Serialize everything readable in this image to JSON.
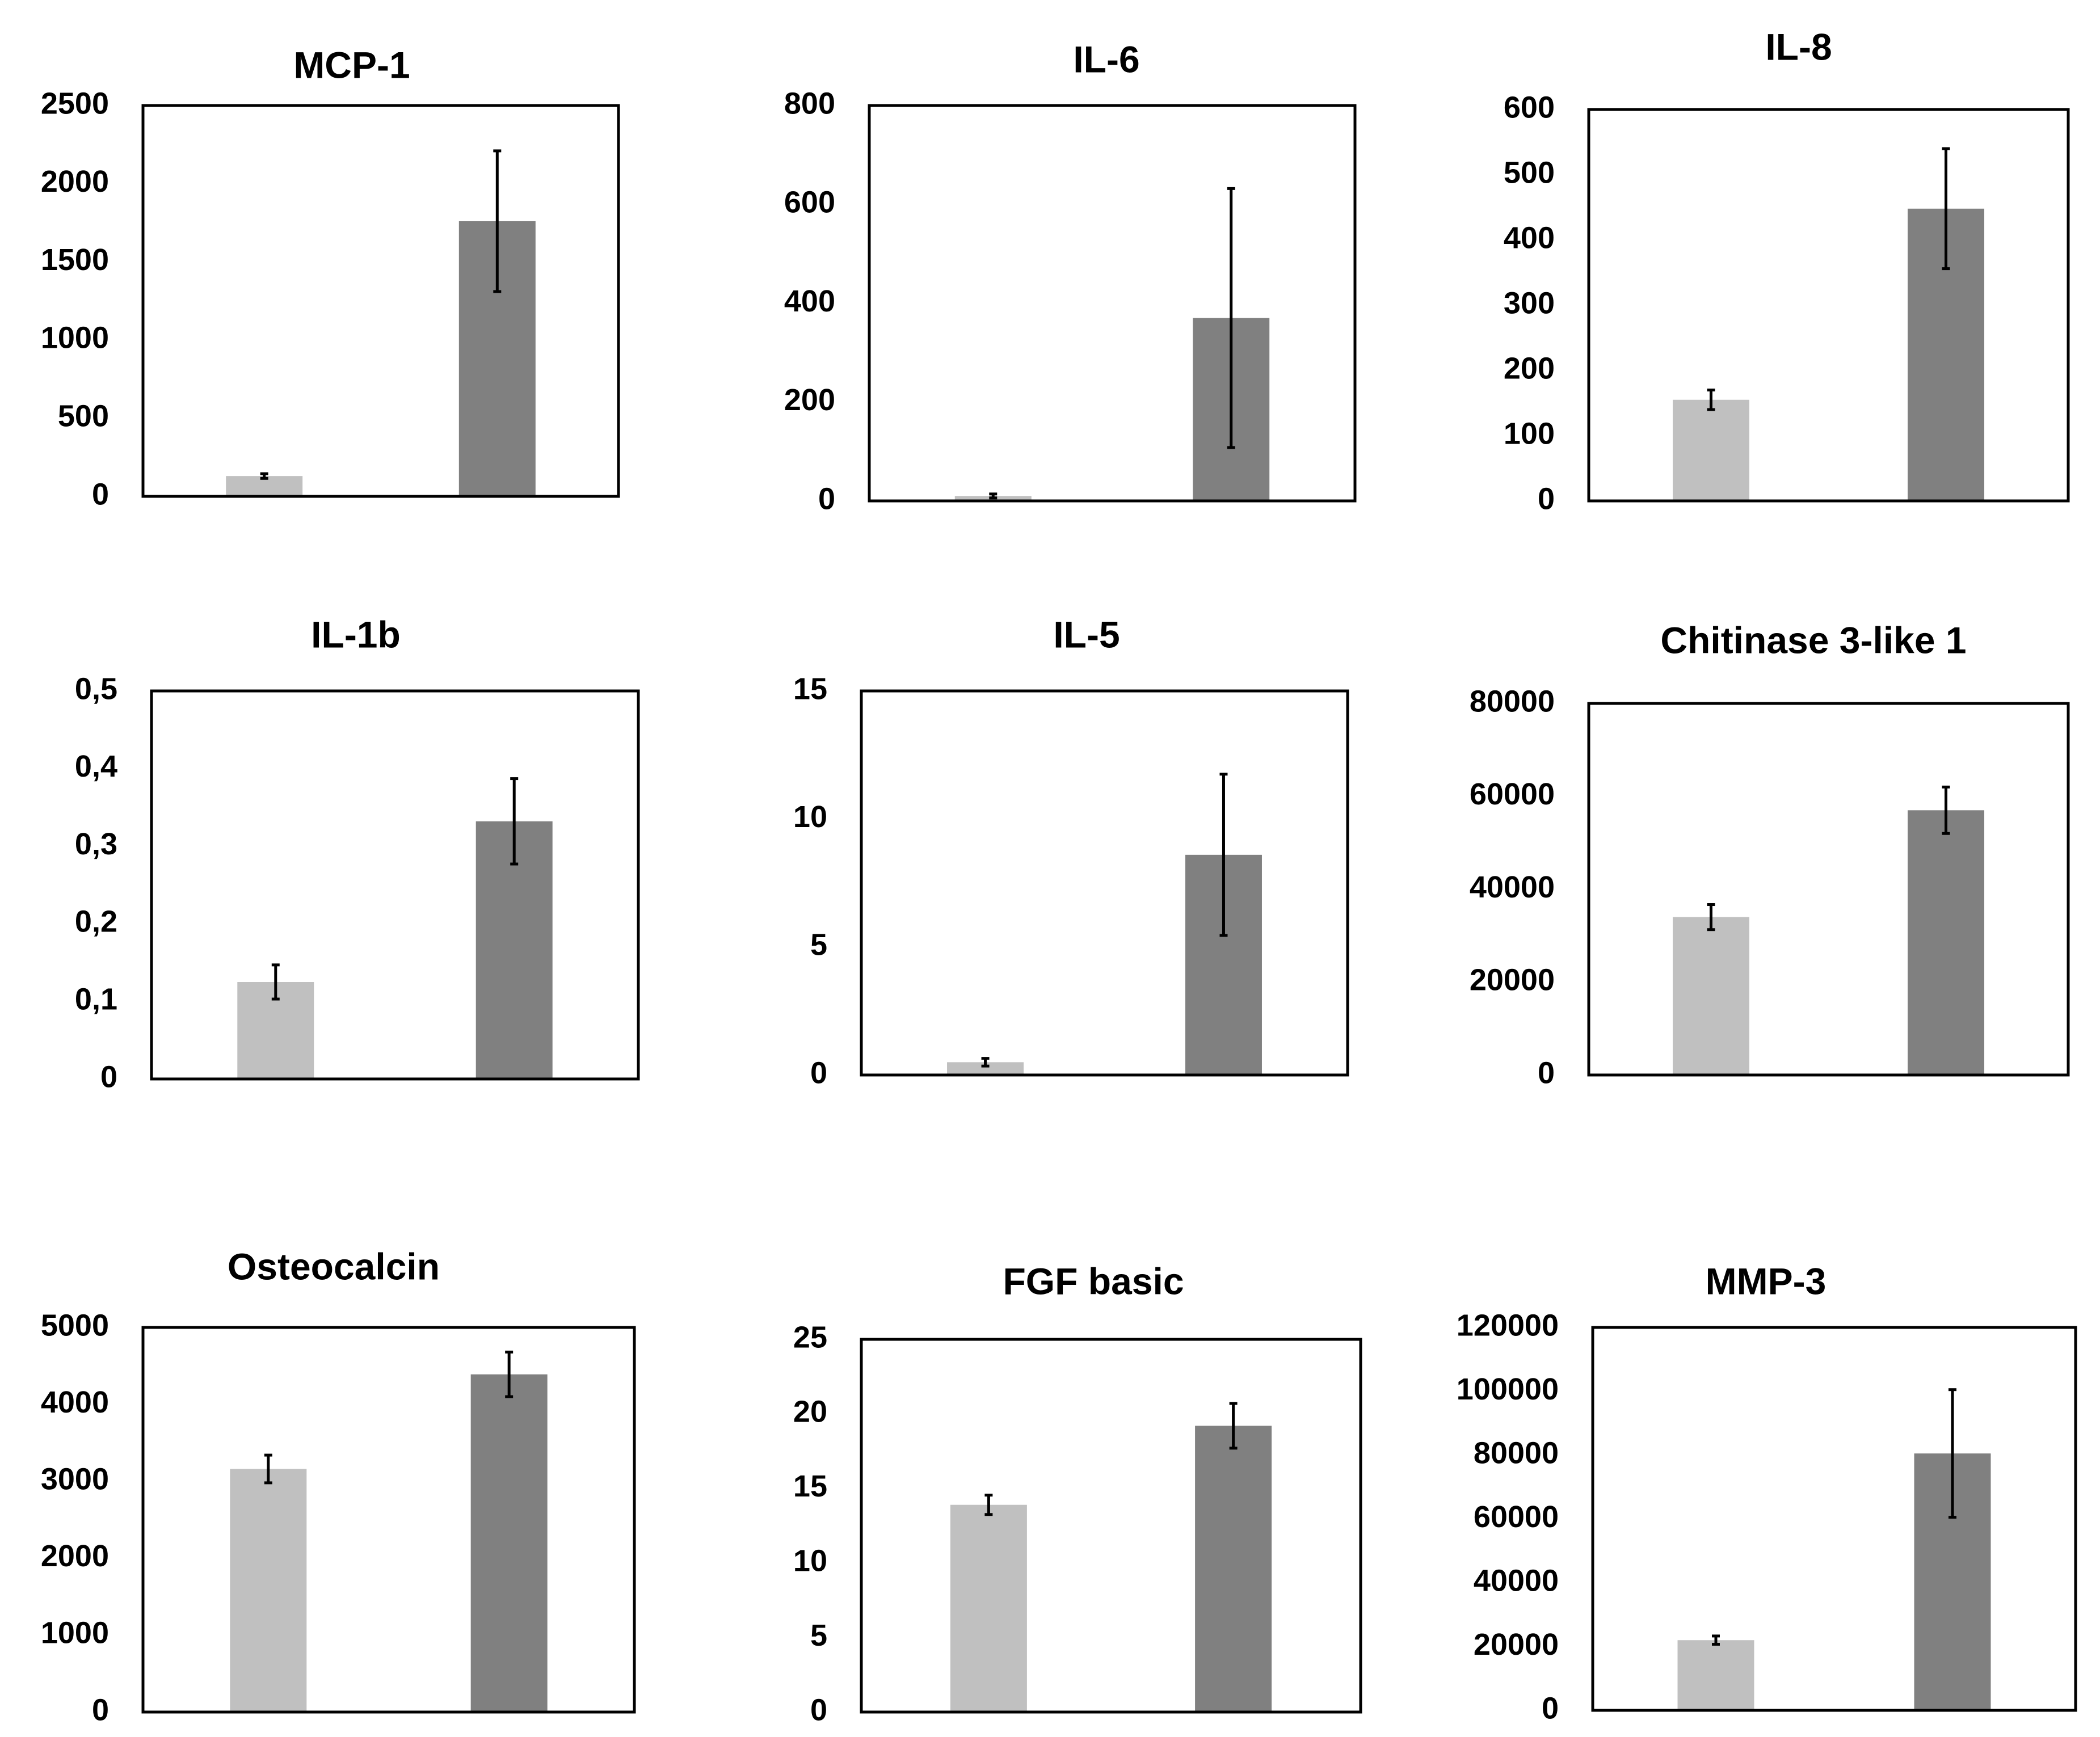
{
  "colors": {
    "group1": "#c0c0c0",
    "group2": "#808080",
    "frame": "#000000",
    "error": "#000000"
  },
  "chart_data": [
    {
      "type": "bar",
      "title": "MCP-1",
      "categories": [
        "",
        ""
      ],
      "series": [
        {
          "name": "",
          "values": [
            130,
            1760
          ]
        }
      ],
      "errors": [
        15,
        450
      ],
      "yticks": [
        "0",
        "500",
        "1000",
        "1500",
        "2000",
        "2500"
      ],
      "ylim": [
        0,
        2500
      ]
    },
    {
      "type": "bar",
      "title": "IL-6",
      "categories": [
        "",
        ""
      ],
      "series": [
        {
          "name": "",
          "values": [
            10,
            370
          ]
        }
      ],
      "errors": [
        4,
        262
      ],
      "yticks": [
        "0",
        "200",
        "400",
        "600",
        "800"
      ],
      "ylim": [
        0,
        800
      ]
    },
    {
      "type": "bar",
      "title": "IL-8",
      "categories": [
        "",
        ""
      ],
      "series": [
        {
          "name": "",
          "values": [
            155,
            448
          ]
        }
      ],
      "errors": [
        15,
        92
      ],
      "yticks": [
        "0",
        "100",
        "200",
        "300",
        "400",
        "500",
        "600"
      ],
      "ylim": [
        0,
        600
      ]
    },
    {
      "type": "bar",
      "title": "IL-1b",
      "categories": [
        "",
        ""
      ],
      "series": [
        {
          "name": "",
          "values": [
            0.125,
            0.332
          ]
        }
      ],
      "errors": [
        0.022,
        0.055
      ],
      "yticks": [
        "0",
        "0,1",
        "0,2",
        "0,3",
        "0,4",
        "0,5"
      ],
      "ylim": [
        0,
        0.5
      ]
    },
    {
      "type": "bar",
      "title": "IL-5",
      "categories": [
        "",
        ""
      ],
      "series": [
        {
          "name": "",
          "values": [
            0.5,
            8.6
          ]
        }
      ],
      "errors": [
        0.15,
        3.15
      ],
      "yticks": [
        "0",
        "5",
        "10",
        "15"
      ],
      "ylim": [
        0,
        15
      ]
    },
    {
      "type": "bar",
      "title": "Chitinase 3-like 1",
      "categories": [
        "",
        ""
      ],
      "series": [
        {
          "name": "",
          "values": [
            34000,
            57000
          ]
        }
      ],
      "errors": [
        2700,
        5000
      ],
      "yticks": [
        "0",
        "20000",
        "40000",
        "60000",
        "80000"
      ],
      "ylim": [
        0,
        80000
      ]
    },
    {
      "type": "bar",
      "title": "Osteocalcin",
      "categories": [
        "",
        ""
      ],
      "series": [
        {
          "name": "",
          "values": [
            3160,
            4390
          ]
        }
      ],
      "errors": [
        180,
        290
      ],
      "yticks": [
        "0",
        "1000",
        "2000",
        "3000",
        "4000",
        "5000"
      ],
      "ylim": [
        0,
        5000
      ]
    },
    {
      "type": "bar",
      "title": "FGF basic",
      "categories": [
        "",
        ""
      ],
      "series": [
        {
          "name": "",
          "values": [
            13.9,
            19.2
          ]
        }
      ],
      "errors": [
        0.65,
        1.5
      ],
      "yticks": [
        "0",
        "5",
        "10",
        "15",
        "20",
        "25"
      ],
      "ylim": [
        0,
        25
      ]
    },
    {
      "type": "bar",
      "title": "MMP-3",
      "categories": [
        "",
        ""
      ],
      "series": [
        {
          "name": "",
          "values": [
            22000,
            80500
          ]
        }
      ],
      "errors": [
        1300,
        20000
      ],
      "yticks": [
        "0",
        "20000",
        "40000",
        "60000",
        "80000",
        "100000",
        "120000"
      ],
      "ylim": [
        0,
        120000
      ]
    }
  ]
}
